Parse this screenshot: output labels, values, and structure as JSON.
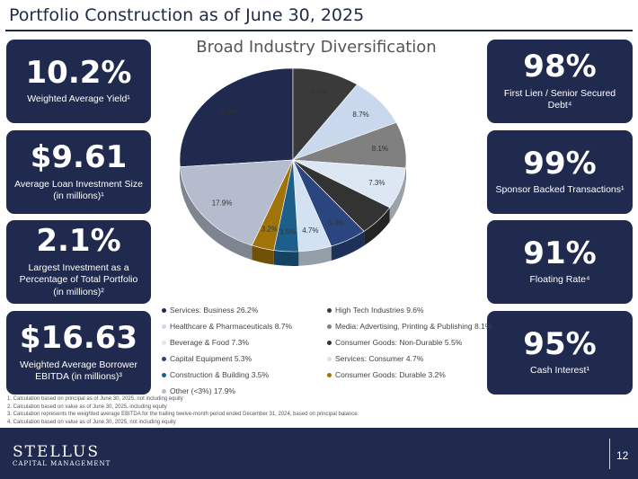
{
  "header": {
    "title": "Portfolio Construction as of June 30, 2025"
  },
  "left_stats": [
    {
      "value": "10.2%",
      "label": "Weighted Average Yield¹"
    },
    {
      "value": "$9.61",
      "label": "Average Loan Investment Size (in millions)¹"
    },
    {
      "value": "2.1%",
      "label": "Largest Investment as a Percentage of Total Portfolio (in millions)²"
    },
    {
      "value": "$16.63",
      "label": "Weighted Average Borrower EBITDA (in millions)³"
    }
  ],
  "right_stats": [
    {
      "value": "98%",
      "label": "First Lien / Senior Secured Debt⁴"
    },
    {
      "value": "99%",
      "label": "Sponsor Backed Transactions¹"
    },
    {
      "value": "91%",
      "label": "Floating Rate⁴"
    },
    {
      "value": "95%",
      "label": "Cash Interest¹"
    }
  ],
  "chart_data": {
    "type": "pie",
    "title": "Broad Industry Diversification",
    "slices": [
      {
        "name": "Services: Business",
        "value": 26.2,
        "label": "26.2%",
        "legend": "Services: Business 26.2%",
        "color": "#1f2a4e"
      },
      {
        "name": "High Tech Industries",
        "value": 9.6,
        "label": "9.6%",
        "legend": "High Tech Industries 9.6%",
        "color": "#3a3a3a"
      },
      {
        "name": "Healthcare & Pharmaceuticals",
        "value": 8.7,
        "label": "8.7%",
        "legend": "Healthcare & Pharmaceuticals 8.7%",
        "color": "#c9d8ec"
      },
      {
        "name": "Media: Advertising, Printing & Publishing",
        "value": 8.1,
        "label": "8.1%",
        "legend": "Media: Advertising, Printing & Publishing 8.1%",
        "color": "#808080"
      },
      {
        "name": "Beverage & Food",
        "value": 7.3,
        "label": "7.3%",
        "legend": "Beverage & Food 7.3%",
        "color": "#dde7f3"
      },
      {
        "name": "Consumer Goods: Non-Durable",
        "value": 5.5,
        "label": "5.5%",
        "legend": "Consumer Goods: Non-Durable 5.5%",
        "color": "#333333"
      },
      {
        "name": "Capital Equipment",
        "value": 5.3,
        "label": "5.3%",
        "legend": "Capital Equipment 5.3%",
        "color": "#2a4580"
      },
      {
        "name": "Services: Consumer",
        "value": 4.7,
        "label": "4.7%",
        "legend": "Services: Consumer 4.7%",
        "color": "#d2e2f2"
      },
      {
        "name": "Construction & Building",
        "value": 3.5,
        "label": "3.5%",
        "legend": "Construction & Building 3.5%",
        "color": "#1d5f8a"
      },
      {
        "name": "Consumer Goods: Durable",
        "value": 3.2,
        "label": "3.2%",
        "legend": "Consumer Goods: Durable 3.2%",
        "color": "#a07408"
      },
      {
        "name": "Other (<3%)",
        "value": 17.9,
        "label": "17.9%",
        "legend": "Other (<3%) 17.9%",
        "color": "#b4bccd"
      }
    ]
  },
  "footnotes": [
    "1.   Calculation based on principal as of June 30, 2025, not including equity",
    "2.   Calculation based on value as of June 30, 2025, including equity",
    "3.   Calculation represents the weighted average EBITDA for the trailing twelve-month period ended December 31, 2024, based on principal balance.",
    "4.   Calculation based on value as of June 30, 2025, not including equity"
  ],
  "footer": {
    "logo_main": "STELLUS",
    "logo_sub": "CAPITAL MANAGEMENT",
    "page_number": "12"
  }
}
